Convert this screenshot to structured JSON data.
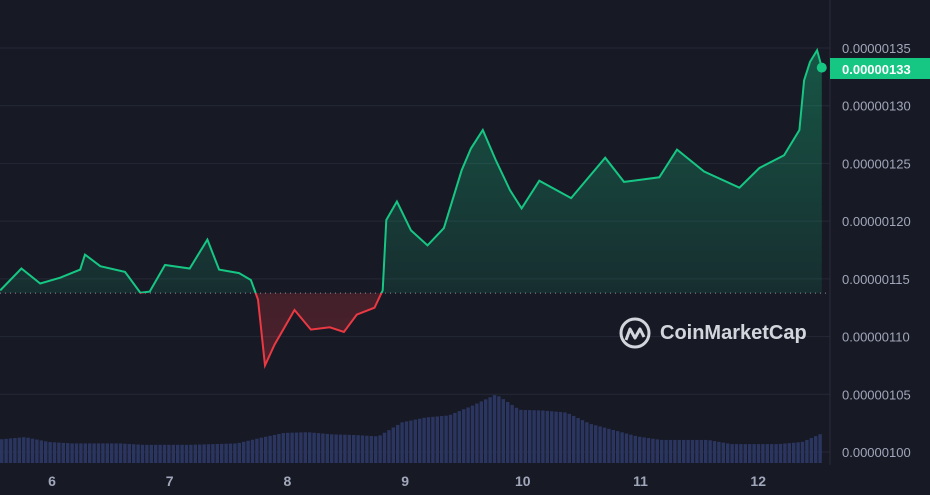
{
  "chart_data": {
    "type": "area",
    "title": "",
    "xlabel": "",
    "ylabel": "",
    "x_ticks": [
      "6",
      "7",
      "8",
      "9",
      "10",
      "11",
      "12"
    ],
    "y_ticks": [
      "0.00000100",
      "0.00000105",
      "0.00000110",
      "0.00000115",
      "0.00000120",
      "0.00000125",
      "0.00000130",
      "0.00000135"
    ],
    "ylim": [
      1e-06,
      1.35e-06
    ],
    "xlim": [
      5.56,
      12.54
    ],
    "grid": true,
    "baseline_price": 1.1376e-06,
    "current_price_label": "0.00000133",
    "up_color": "#16c784",
    "down_color": "#ea3943",
    "volume_color": "#2b3660",
    "price_series": [
      [
        5.56,
        1.14e-06
      ],
      [
        5.74,
        1.159e-06
      ],
      [
        5.9,
        1.146e-06
      ],
      [
        6.07,
        1.151e-06
      ],
      [
        6.24,
        1.158e-06
      ],
      [
        6.28,
        1.171e-06
      ],
      [
        6.41,
        1.161e-06
      ],
      [
        6.62,
        1.156e-06
      ],
      [
        6.75,
        1.138e-06
      ],
      [
        6.83,
        1.139e-06
      ],
      [
        6.96,
        1.162e-06
      ],
      [
        7.17,
        1.159e-06
      ],
      [
        7.32,
        1.184e-06
      ],
      [
        7.42,
        1.158e-06
      ],
      [
        7.59,
        1.155e-06
      ],
      [
        7.69,
        1.149e-06
      ],
      [
        7.75,
        1.132e-06
      ],
      [
        7.81,
        1.075e-06
      ],
      [
        7.89,
        1.093e-06
      ],
      [
        8.06,
        1.123e-06
      ],
      [
        8.2,
        1.106e-06
      ],
      [
        8.36,
        1.108e-06
      ],
      [
        8.48,
        1.104e-06
      ],
      [
        8.59,
        1.119e-06
      ],
      [
        8.74,
        1.125e-06
      ],
      [
        8.81,
        1.14e-06
      ],
      [
        8.84,
        1.201e-06
      ],
      [
        8.93,
        1.217e-06
      ],
      [
        9.05,
        1.192e-06
      ],
      [
        9.19,
        1.179e-06
      ],
      [
        9.33,
        1.194e-06
      ],
      [
        9.48,
        1.244e-06
      ],
      [
        9.56,
        1.263e-06
      ],
      [
        9.66,
        1.279e-06
      ],
      [
        9.77,
        1.253e-06
      ],
      [
        9.89,
        1.227e-06
      ],
      [
        9.99,
        1.211e-06
      ],
      [
        10.14,
        1.235e-06
      ],
      [
        10.41,
        1.22e-06
      ],
      [
        10.7,
        1.255e-06
      ],
      [
        10.86,
        1.234e-06
      ],
      [
        11.16,
        1.238e-06
      ],
      [
        11.31,
        1.262e-06
      ],
      [
        11.54,
        1.243e-06
      ],
      [
        11.84,
        1.229e-06
      ],
      [
        12.01,
        1.246e-06
      ],
      [
        12.22,
        1.257e-06
      ],
      [
        12.35,
        1.279e-06
      ],
      [
        12.39,
        1.322e-06
      ],
      [
        12.44,
        1.338e-06
      ],
      [
        12.5,
        1.348e-06
      ],
      [
        12.54,
        1.333e-06
      ]
    ],
    "volume_relative": {
      "x": [
        5.56,
        5.76,
        5.96,
        6.16,
        6.36,
        6.56,
        6.76,
        6.96,
        7.16,
        7.36,
        7.56,
        7.76,
        7.96,
        8.16,
        8.36,
        8.56,
        8.76,
        8.96,
        9.16,
        9.36,
        9.56,
        9.76,
        9.96,
        10.16,
        10.36,
        10.56,
        10.76,
        10.96,
        11.16,
        11.36,
        11.56,
        11.76,
        11.96,
        12.16,
        12.36,
        12.54
      ],
      "values": [
        0.34,
        0.37,
        0.3,
        0.28,
        0.28,
        0.28,
        0.26,
        0.26,
        0.26,
        0.27,
        0.28,
        0.36,
        0.43,
        0.44,
        0.41,
        0.4,
        0.38,
        0.58,
        0.65,
        0.68,
        0.82,
        0.98,
        0.76,
        0.75,
        0.72,
        0.56,
        0.47,
        0.38,
        0.33,
        0.33,
        0.33,
        0.27,
        0.27,
        0.27,
        0.3,
        0.43
      ]
    }
  },
  "watermark": "CoinMarketCap"
}
